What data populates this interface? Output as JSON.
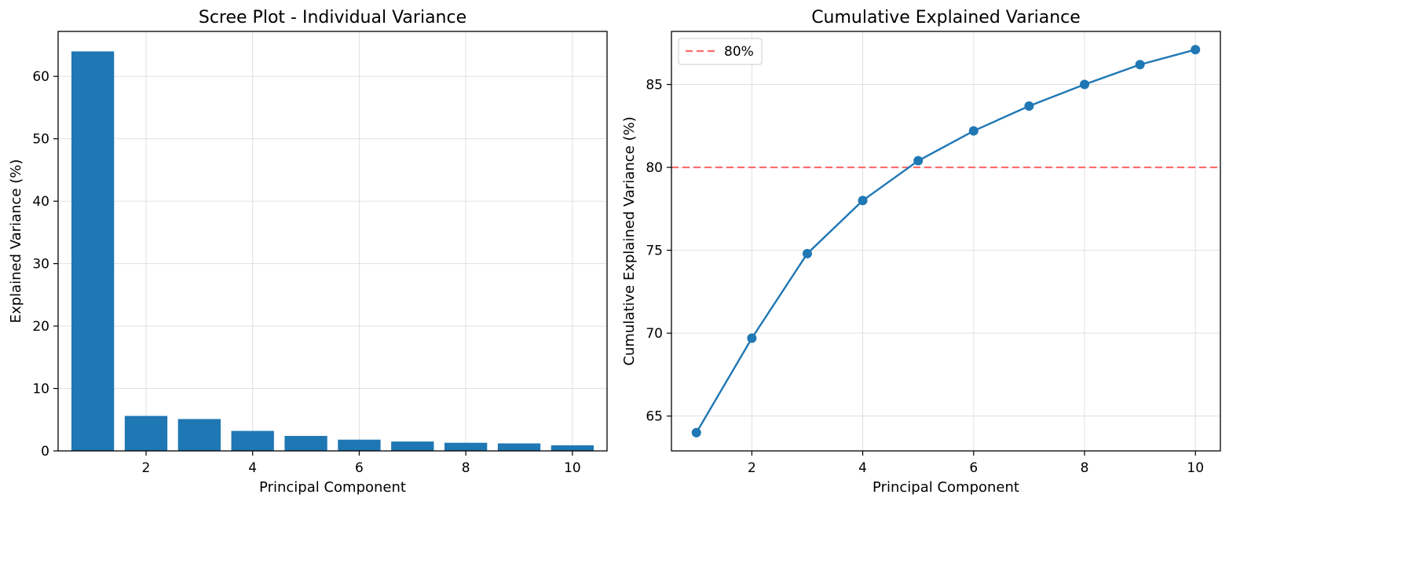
{
  "colors": {
    "bar": "#1f77b4",
    "line": "#1f77b4",
    "threshold": "#ff6b6b",
    "grid": "#e0e0e0",
    "axis": "#000000"
  },
  "chart_data": [
    {
      "type": "bar",
      "title": "Scree Plot - Individual Variance",
      "xlabel": "Principal Component",
      "ylabel": "Explained Variance (%)",
      "x": [
        1,
        2,
        3,
        4,
        5,
        6,
        7,
        8,
        9,
        10
      ],
      "values": [
        64.0,
        5.6,
        5.1,
        3.2,
        2.4,
        1.8,
        1.5,
        1.3,
        1.2,
        0.9
      ],
      "xlim": [
        0.35,
        10.65
      ],
      "ylim": [
        0,
        67.2
      ],
      "xticks": [
        2,
        4,
        6,
        8,
        10
      ],
      "yticks": [
        0,
        10,
        20,
        30,
        40,
        50,
        60
      ],
      "grid": true
    },
    {
      "type": "line",
      "title": "Cumulative Explained Variance",
      "xlabel": "Principal Component",
      "ylabel": "Cumulative Explained Variance (%)",
      "x": [
        1,
        2,
        3,
        4,
        5,
        6,
        7,
        8,
        9,
        10
      ],
      "values": [
        64.0,
        69.7,
        74.8,
        78.0,
        80.4,
        82.2,
        83.7,
        85.0,
        86.2,
        87.1
      ],
      "threshold": {
        "value": 80,
        "label": "80%"
      },
      "legend_position": "upper-left",
      "xlim": [
        0.55,
        10.45
      ],
      "ylim": [
        62.9,
        88.2
      ],
      "xticks": [
        2,
        4,
        6,
        8,
        10
      ],
      "yticks": [
        65,
        70,
        75,
        80,
        85
      ],
      "grid": true
    }
  ]
}
